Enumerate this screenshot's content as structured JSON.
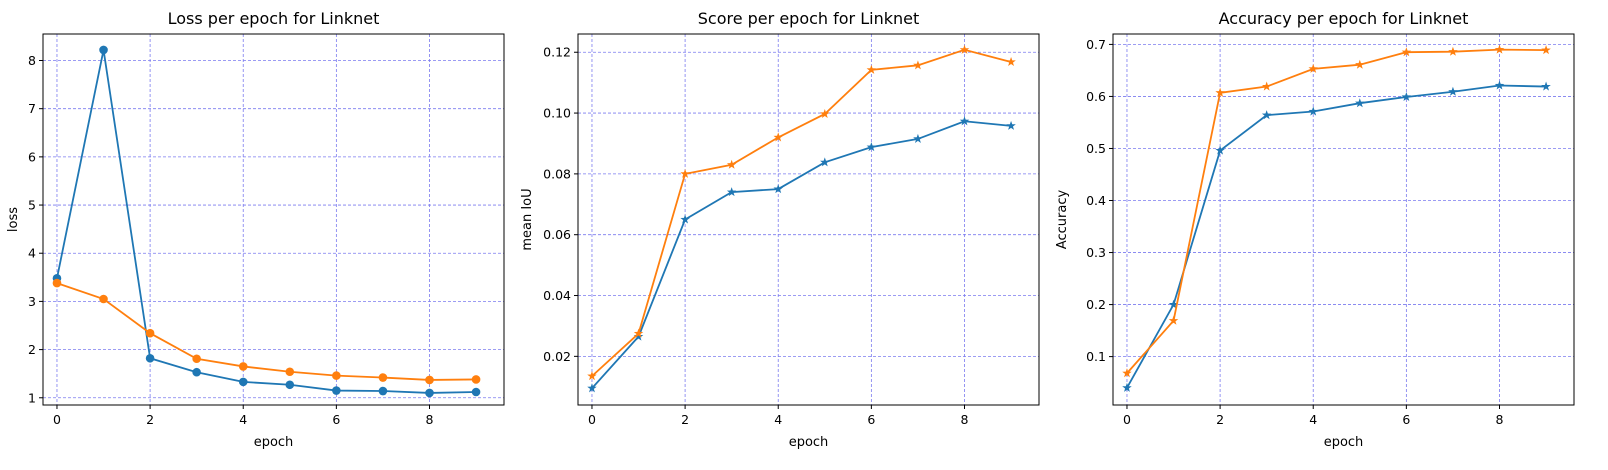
{
  "chart_data": [
    {
      "type": "line",
      "title": "Loss per epoch for Linknet",
      "xlabel": "epoch",
      "ylabel": "loss",
      "x": [
        0,
        1,
        2,
        3,
        4,
        5,
        6,
        7,
        8,
        9
      ],
      "xlim": [
        -0.3,
        9.6
      ],
      "ylim": [
        0.85,
        8.55
      ],
      "xticks": [
        0,
        2,
        4,
        6,
        8
      ],
      "yticks": [
        1,
        2,
        3,
        4,
        5,
        6,
        7,
        8
      ],
      "grid": true,
      "marker": "circle",
      "series": [
        {
          "color": "#1f77b4",
          "values": [
            3.48,
            8.22,
            1.82,
            1.53,
            1.33,
            1.27,
            1.15,
            1.14,
            1.1,
            1.12
          ]
        },
        {
          "color": "#ff7f0e",
          "values": [
            3.38,
            3.05,
            2.34,
            1.81,
            1.65,
            1.54,
            1.46,
            1.42,
            1.37,
            1.38
          ]
        }
      ]
    },
    {
      "type": "line",
      "title": "Score per epoch for Linknet",
      "xlabel": "epoch",
      "ylabel": "mean IoU",
      "x": [
        0,
        1,
        2,
        3,
        4,
        5,
        6,
        7,
        8,
        9
      ],
      "xlim": [
        -0.3,
        9.6
      ],
      "ylim": [
        0.004,
        0.126
      ],
      "xticks": [
        0,
        2,
        4,
        6,
        8
      ],
      "yticks": [
        0.02,
        0.04,
        0.06,
        0.08,
        0.1,
        0.12
      ],
      "ytick_labels": [
        "0.02",
        "0.04",
        "0.06",
        "0.08",
        "0.10",
        "0.12"
      ],
      "grid": true,
      "marker": "star",
      "series": [
        {
          "color": "#1f77b4",
          "values": [
            0.0095,
            0.0265,
            0.065,
            0.074,
            0.075,
            0.0838,
            0.0888,
            0.0915,
            0.0973,
            0.0958
          ]
        },
        {
          "color": "#ff7f0e",
          "values": [
            0.0135,
            0.0275,
            0.08,
            0.083,
            0.092,
            0.0997,
            0.1142,
            0.1157,
            0.1208,
            0.1168
          ]
        }
      ]
    },
    {
      "type": "line",
      "title": "Accuracy per epoch for Linknet",
      "xlabel": "epoch",
      "ylabel": "Accuracy",
      "x": [
        0,
        1,
        2,
        3,
        4,
        5,
        6,
        7,
        8,
        9
      ],
      "xlim": [
        -0.3,
        9.6
      ],
      "ylim": [
        0.007,
        0.72
      ],
      "xticks": [
        0,
        2,
        4,
        6,
        8
      ],
      "yticks": [
        0.1,
        0.2,
        0.3,
        0.4,
        0.5,
        0.6,
        0.7
      ],
      "ytick_labels": [
        "0.1",
        "0.2",
        "0.3",
        "0.4",
        "0.5",
        "0.6",
        "0.7"
      ],
      "grid": true,
      "marker": "star",
      "series": [
        {
          "color": "#1f77b4",
          "values": [
            0.04,
            0.2,
            0.496,
            0.564,
            0.571,
            0.587,
            0.599,
            0.609,
            0.621,
            0.619
          ]
        },
        {
          "color": "#ff7f0e",
          "values": [
            0.068,
            0.169,
            0.607,
            0.619,
            0.653,
            0.661,
            0.685,
            0.686,
            0.69,
            0.689
          ]
        }
      ]
    }
  ]
}
